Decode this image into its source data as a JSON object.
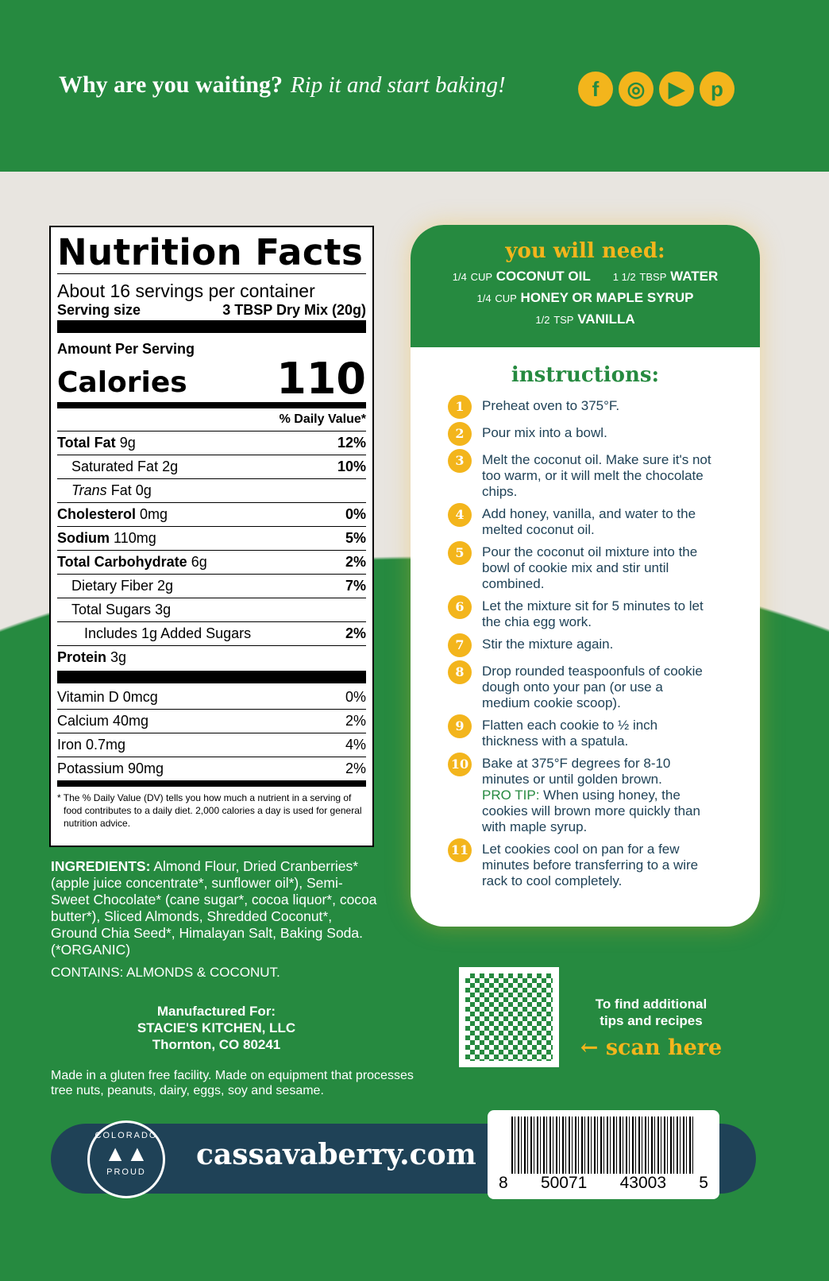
{
  "header": {
    "tagline_bold": "Why are you waiting?",
    "tagline_italic": "Rip it and start baking!",
    "social": [
      {
        "icon": "facebook-icon",
        "glyph": "f"
      },
      {
        "icon": "instagram-icon",
        "glyph": "◎"
      },
      {
        "icon": "youtube-icon",
        "glyph": "▶"
      },
      {
        "icon": "pinterest-icon",
        "glyph": "p"
      }
    ]
  },
  "nutrition": {
    "title": "Nutrition Facts",
    "servings": "About 16 servings per container",
    "serving_size_label": "Serving size",
    "serving_size_value": "3 TBSP Dry Mix (20g)",
    "amount_per_serving": "Amount Per Serving",
    "calories_label": "Calories",
    "calories_value": "110",
    "dv_header": "% Daily Value*",
    "rows": [
      {
        "name": "Total Fat",
        "amount": "9g",
        "dv": "12%",
        "bold": true,
        "indent": 0
      },
      {
        "name": "Saturated Fat",
        "amount": "2g",
        "dv": "10%",
        "bold": false,
        "indent": 1
      },
      {
        "name": "Trans",
        "amount": "Fat 0g",
        "dv": "",
        "bold": false,
        "indent": 1,
        "italic": true
      },
      {
        "name": "Cholesterol",
        "amount": "0mg",
        "dv": "0%",
        "bold": true,
        "indent": 0
      },
      {
        "name": "Sodium",
        "amount": "110mg",
        "dv": "5%",
        "bold": true,
        "indent": 0
      },
      {
        "name": "Total Carbohydrate",
        "amount": "6g",
        "dv": "2%",
        "bold": true,
        "indent": 0
      },
      {
        "name": "Dietary Fiber",
        "amount": "2g",
        "dv": "7%",
        "bold": false,
        "indent": 1
      },
      {
        "name": "Total Sugars",
        "amount": "3g",
        "dv": "",
        "bold": false,
        "indent": 1
      },
      {
        "name": "Includes 1g Added Sugars",
        "amount": "",
        "dv": "2%",
        "bold": false,
        "indent": 2
      },
      {
        "name": "Protein",
        "amount": "3g",
        "dv": "",
        "bold": true,
        "indent": 0
      }
    ],
    "vitamins": [
      {
        "name": "Vitamin D 0mcg",
        "dv": "0%"
      },
      {
        "name": "Calcium 40mg",
        "dv": "2%"
      },
      {
        "name": "Iron 0.7mg",
        "dv": "4%"
      },
      {
        "name": "Potassium 90mg",
        "dv": "2%"
      }
    ],
    "footnote": "* The % Daily Value (DV) tells you how much a nutrient in a serving of food contributes to a daily diet. 2,000 calories a day is used for general nutrition advice."
  },
  "ingredients": {
    "label": "INGREDIENTS:",
    "text": "Almond Flour, Dried Cranberries* (apple juice concentrate*, sunflower oil*), Semi-Sweet Chocolate* (cane sugar*, cocoa liquor*, cocoa butter*), Sliced Almonds, Shredded Coconut*, Ground Chia Seed*, Himalayan Salt, Baking Soda. (*ORGANIC)",
    "contains": "CONTAINS: ALMONDS & COCONUT."
  },
  "manufacturer": {
    "line1": "Manufactured For:",
    "line2": "STACIE'S KITCHEN, LLC",
    "line3": "Thornton, CO 80241"
  },
  "facility": "Made in a gluten free facility. Made on equipment that processes tree nuts, peanuts, dairy, eggs, soy and sesame.",
  "need": {
    "title": "you will need:",
    "items": [
      [
        {
          "qty": "1/4",
          "unit": "CUP",
          "name": "COCONUT OIL"
        },
        {
          "qty": "1 1/2",
          "unit": "TBSP",
          "name": "WATER"
        }
      ],
      [
        {
          "qty": "1/4",
          "unit": "CUP",
          "name": "HONEY OR MAPLE SYRUP"
        }
      ],
      [
        {
          "qty": "1/2",
          "unit": "TSP",
          "name": "VANILLA"
        }
      ]
    ]
  },
  "instructions": {
    "title": "instructions:",
    "steps": [
      "Preheat oven to 375°F.",
      "Pour mix into a bowl.",
      "Melt the coconut oil. Make sure it's not too warm, or it will melt the chocolate chips.",
      "Add honey, vanilla, and water to the melted coconut oil.",
      "Pour the coconut oil mixture into the bowl of cookie mix and stir until combined.",
      "Let the mixture sit for 5 minutes to let the chia egg work.",
      "Stir the mixture again.",
      "Drop rounded teaspoonfuls of cookie dough onto your pan (or use a medium cookie scoop).",
      "Flatten each cookie to ½ inch thickness with a spatula.",
      "Bake at 375°F degrees for 8-10 minutes or until golden brown.",
      "Let cookies cool on pan for a few minutes before transferring to a wire rack to cool completely."
    ],
    "pro_tip_label": "PRO TIP:",
    "pro_tip": "When using honey, the cookies will brown more quickly than with maple syrup."
  },
  "qr": {
    "text1": "To find additional",
    "text2": "tips and recipes",
    "scan": "← scan here"
  },
  "footer": {
    "logo_top": "COLORADO",
    "logo_bottom": "PROUD",
    "website": "cassavaberry.com",
    "barcode": [
      "8",
      "50071",
      "43003",
      "5"
    ]
  },
  "colors": {
    "green": "#268a40",
    "yellow": "#f3b51c",
    "navy": "#1f4257"
  }
}
